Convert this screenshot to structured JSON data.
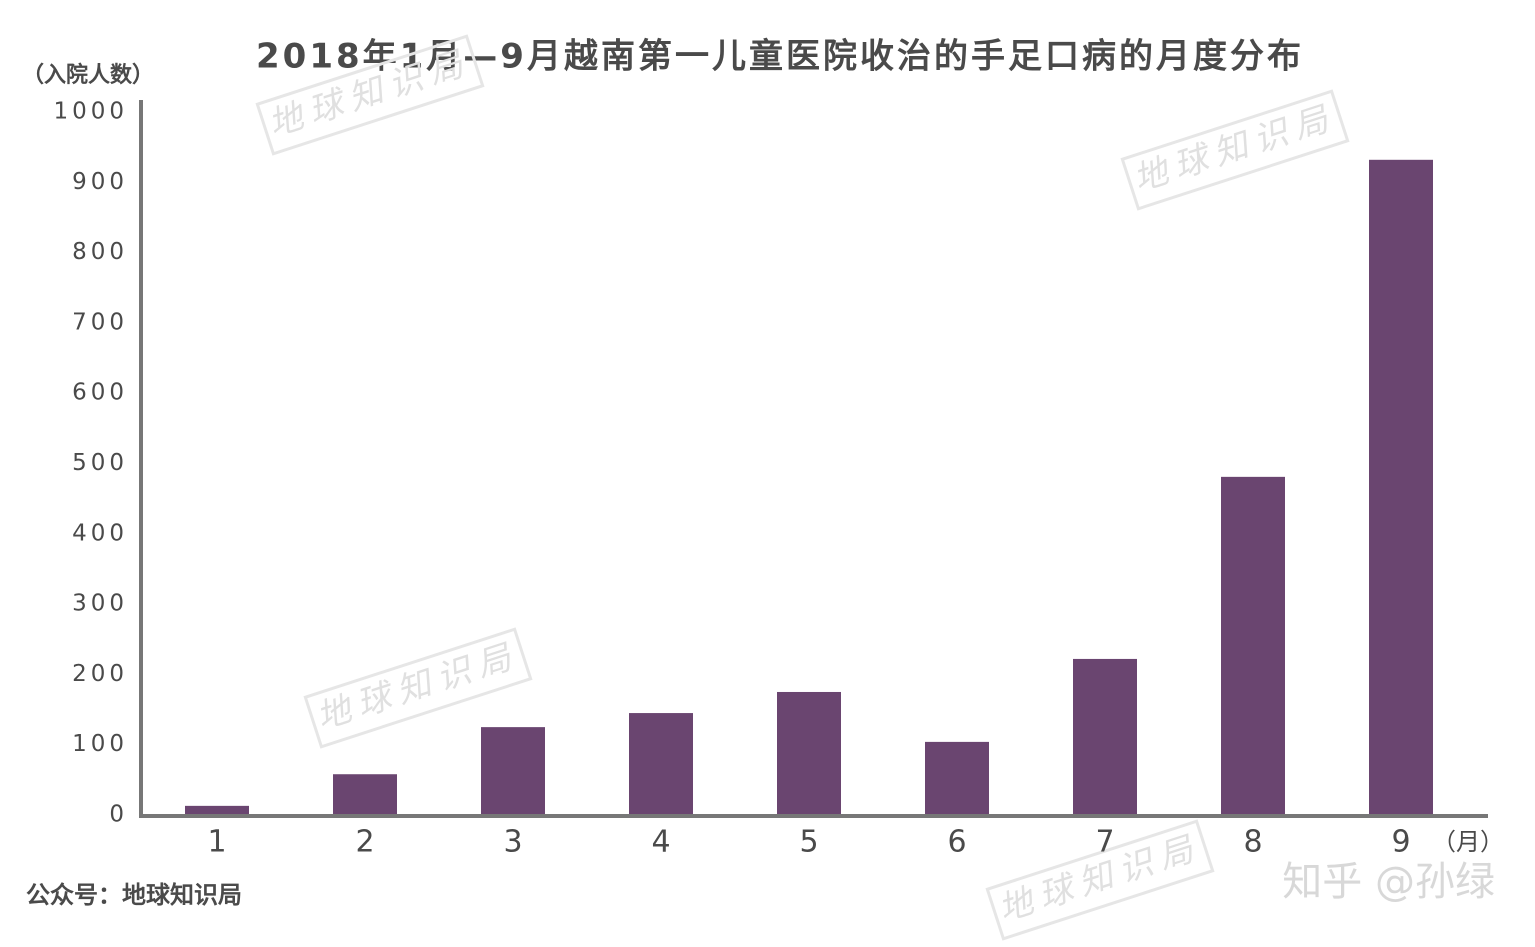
{
  "chart_data": {
    "type": "bar",
    "title": "2018年1月—9月越南第一儿童医院收治的手足口病的月度分布",
    "y_label": "（入院人数）",
    "x_label": "（月）",
    "source": "公众号：地球知识局",
    "watermarks": [
      "地球知识局",
      "地球知识局",
      "地球知识局",
      "地球知识局"
    ],
    "credit": "知乎 @孙绿",
    "categories": [
      "1",
      "2",
      "3",
      "4",
      "5",
      "6",
      "7",
      "8",
      "9"
    ],
    "values": [
      13,
      58,
      125,
      145,
      175,
      104,
      222,
      481,
      932
    ],
    "color": "#6a4570",
    "ylim": [
      0,
      1000
    ],
    "yticks": [
      0,
      100,
      200,
      300,
      400,
      500,
      600,
      700,
      800,
      900,
      1000
    ],
    "grid": false
  }
}
